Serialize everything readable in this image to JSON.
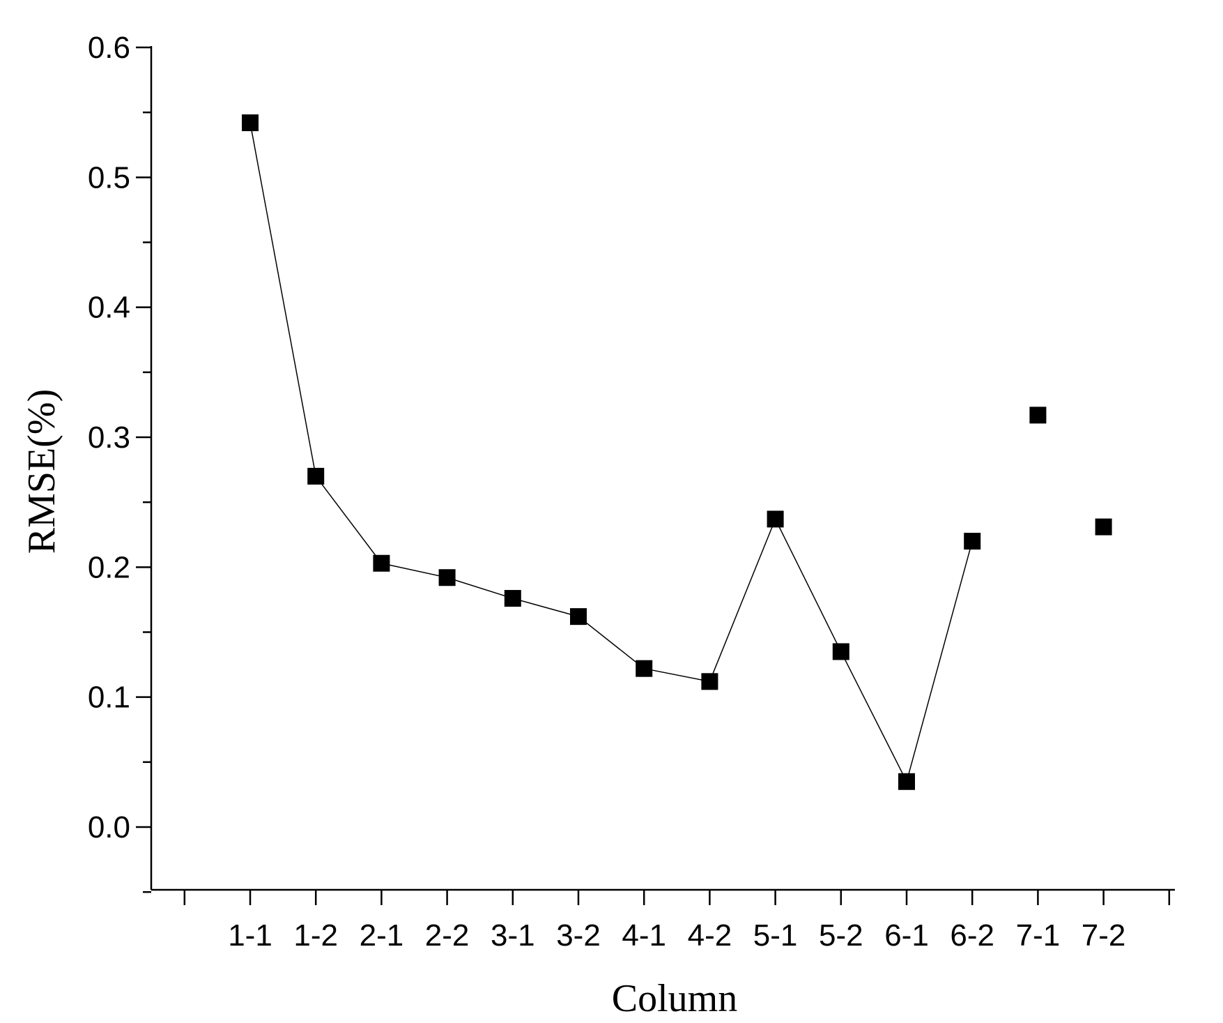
{
  "chart_data": {
    "type": "line",
    "title": "",
    "xlabel": "Column",
    "ylabel": "RMSE(%)",
    "categories": [
      "1-1",
      "1-2",
      "2-1",
      "2-2",
      "3-1",
      "3-2",
      "4-1",
      "4-2",
      "5-1",
      "5-2",
      "6-1",
      "6-2",
      "7-1",
      "7-2"
    ],
    "series": [
      {
        "values": [
          0.542,
          0.27,
          0.203,
          0.192,
          0.176,
          0.162,
          0.122,
          0.112,
          0.237,
          0.135,
          0.035,
          0.22,
          0.317,
          0.231
        ],
        "marker": "square",
        "color": "#000000",
        "connected_through": "6-2"
      }
    ],
    "ylim": [
      -0.05,
      0.6
    ],
    "yticks": [
      "0.0",
      "0.1",
      "0.2",
      "0.3",
      "0.4",
      "0.5",
      "0.6"
    ],
    "grid": false,
    "legend": "none"
  }
}
